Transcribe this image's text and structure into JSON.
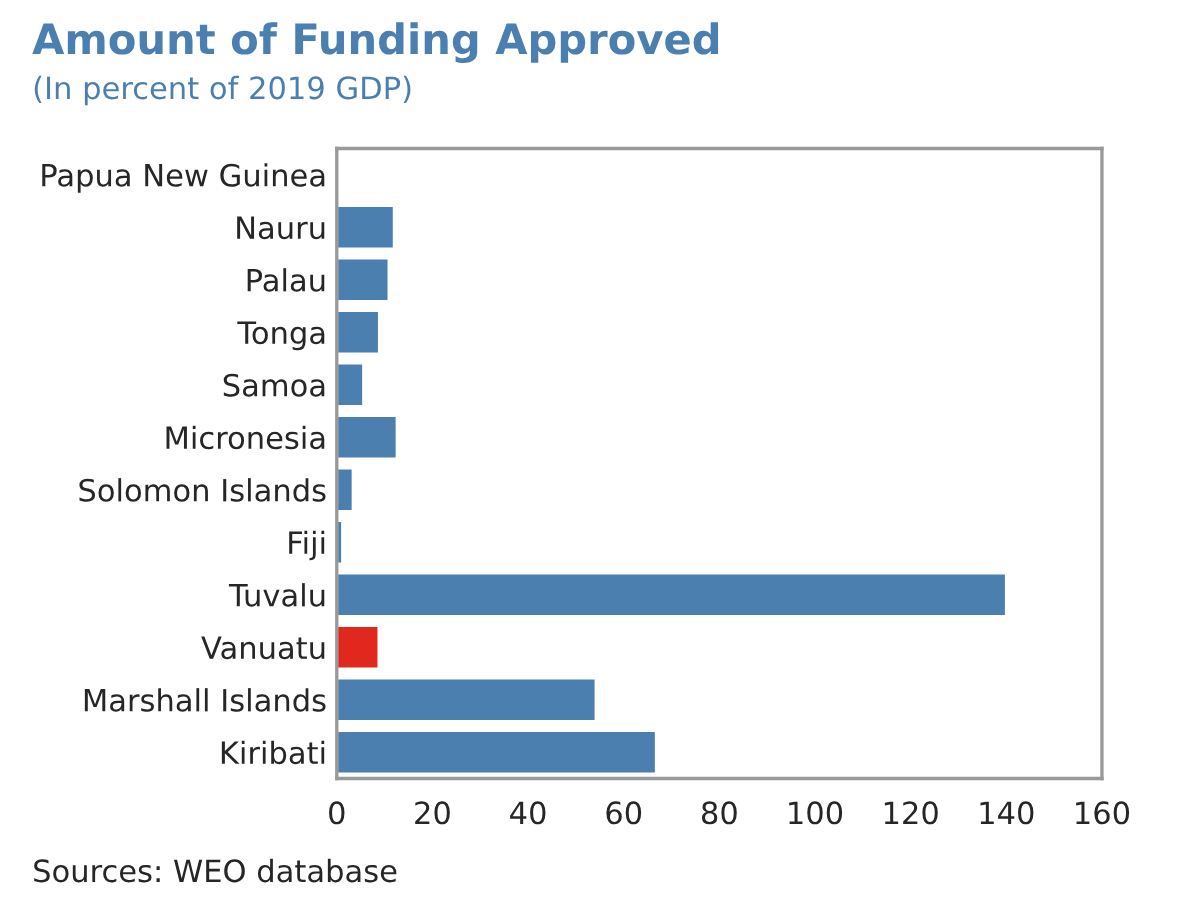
{
  "chart_data": {
    "type": "bar",
    "orientation": "horizontal",
    "title": "Amount of Funding Approved",
    "subtitle": "(In percent of 2019 GDP)",
    "categories": [
      "Papua New Guinea",
      "Nauru",
      "Palau",
      "Tonga",
      "Samoa",
      "Micronesia",
      "Solomon Islands",
      "Fiji",
      "Tuvalu",
      "Vanuatu",
      "Marshall Islands",
      "Kiribati"
    ],
    "values": [
      null,
      12.0,
      10.9,
      8.9,
      5.6,
      12.6,
      3.4,
      1.2,
      140,
      8.8,
      54.2,
      66.8
    ],
    "colors": [
      null,
      "#4a7fb0",
      "#4a7fb0",
      "#4a7fb0",
      "#4a7fb0",
      "#4a7fb0",
      "#4a7fb0",
      "#4a7fb0",
      "#4a7fb0",
      "#e0281e",
      "#4a7fb0",
      "#4a7fb0"
    ],
    "xlim": [
      0,
      160
    ],
    "xticks": [
      0,
      20,
      40,
      60,
      80,
      100,
      120,
      140,
      160
    ],
    "grid": false,
    "annotations": [
      "Sources: WEO database"
    ]
  }
}
